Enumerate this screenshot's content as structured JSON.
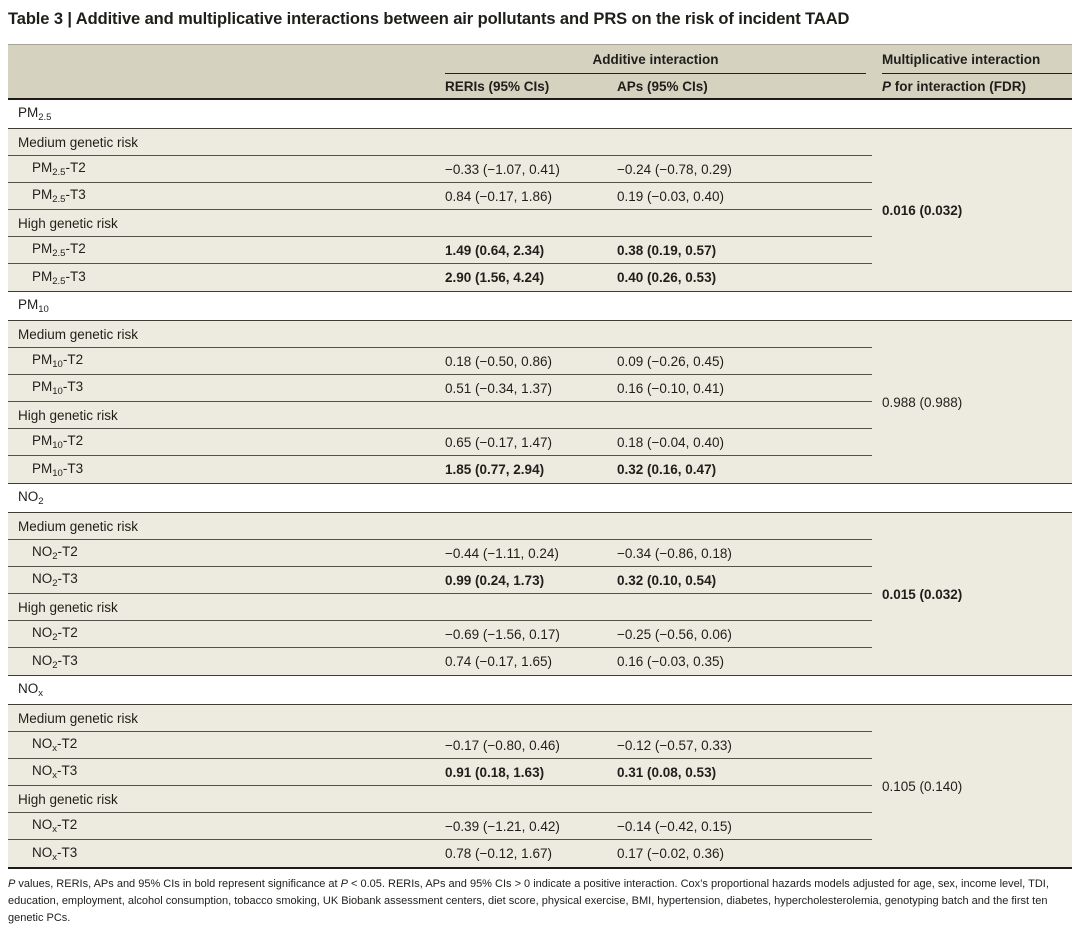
{
  "title": "Table 3 | Additive and multiplicative interactions between air pollutants and PRS on the risk of incident TAAD",
  "colors": {
    "header_band_bg": "#d5d2c0",
    "row_bg": "#edebe0",
    "rule_dark": "#1c1b17",
    "rule_mid": "#3e3c33",
    "rule_row": "#55524a",
    "text": "#1f1e1a"
  },
  "header": {
    "additive": "Additive interaction",
    "multiplicative": "Multiplicative interaction",
    "reri": "RERIs (95% CIs)",
    "ap": "APs (95% CIs)",
    "p_italic": "P",
    "p_rest": " for interaction (FDR)"
  },
  "sections": [
    {
      "pollutant": {
        "main": "PM",
        "sub": "2.5",
        "rest": ""
      },
      "p_value": "0.016 (0.032)",
      "p_bold": true,
      "groups": [
        {
          "label": "Medium genetic risk",
          "rows": [
            {
              "label": {
                "main": "PM",
                "sub": "2.5",
                "rest": "-T2"
              },
              "reri": "−0.33 (−1.07, 0.41)",
              "ap": "−0.24 (−0.78, 0.29)",
              "bold": false
            },
            {
              "label": {
                "main": "PM",
                "sub": "2.5",
                "rest": "-T3"
              },
              "reri": "0.84 (−0.17, 1.86)",
              "ap": "0.19 (−0.03, 0.40)",
              "bold": false
            }
          ]
        },
        {
          "label": "High genetic risk",
          "rows": [
            {
              "label": {
                "main": "PM",
                "sub": "2.5",
                "rest": "-T2"
              },
              "reri": "1.49 (0.64, 2.34)",
              "ap": "0.38 (0.19, 0.57)",
              "bold": true
            },
            {
              "label": {
                "main": "PM",
                "sub": "2.5",
                "rest": "-T3"
              },
              "reri": "2.90 (1.56, 4.24)",
              "ap": "0.40 (0.26, 0.53)",
              "bold": true
            }
          ]
        }
      ]
    },
    {
      "pollutant": {
        "main": "PM",
        "sub": "10",
        "rest": ""
      },
      "p_value": "0.988 (0.988)",
      "p_bold": false,
      "groups": [
        {
          "label": "Medium genetic risk",
          "rows": [
            {
              "label": {
                "main": "PM",
                "sub": "10",
                "rest": "-T2"
              },
              "reri": "0.18 (−0.50, 0.86)",
              "ap": "0.09 (−0.26, 0.45)",
              "bold": false
            },
            {
              "label": {
                "main": "PM",
                "sub": "10",
                "rest": "-T3"
              },
              "reri": "0.51 (−0.34, 1.37)",
              "ap": "0.16 (−0.10, 0.41)",
              "bold": false
            }
          ]
        },
        {
          "label": "High genetic risk",
          "rows": [
            {
              "label": {
                "main": "PM",
                "sub": "10",
                "rest": "-T2"
              },
              "reri": "0.65 (−0.17, 1.47)",
              "ap": "0.18 (−0.04, 0.40)",
              "bold": false
            },
            {
              "label": {
                "main": "PM",
                "sub": "10",
                "rest": "-T3"
              },
              "reri": "1.85 (0.77, 2.94)",
              "ap": "0.32 (0.16, 0.47)",
              "bold": true
            }
          ]
        }
      ]
    },
    {
      "pollutant": {
        "main": "NO",
        "sub": "2",
        "rest": ""
      },
      "p_value": "0.015 (0.032)",
      "p_bold": true,
      "groups": [
        {
          "label": "Medium genetic risk",
          "rows": [
            {
              "label": {
                "main": "NO",
                "sub": "2",
                "rest": "-T2"
              },
              "reri": "−0.44 (−1.11, 0.24)",
              "ap": "−0.34 (−0.86, 0.18)",
              "bold": false
            },
            {
              "label": {
                "main": "NO",
                "sub": "2",
                "rest": "-T3"
              },
              "reri": "0.99 (0.24, 1.73)",
              "ap": "0.32 (0.10, 0.54)",
              "bold": true
            }
          ]
        },
        {
          "label": "High genetic risk",
          "rows": [
            {
              "label": {
                "main": "NO",
                "sub": "2",
                "rest": "-T2"
              },
              "reri": "−0.69 (−1.56, 0.17)",
              "ap": "−0.25 (−0.56, 0.06)",
              "bold": false
            },
            {
              "label": {
                "main": "NO",
                "sub": "2",
                "rest": "-T3"
              },
              "reri": "0.74 (−0.17, 1.65)",
              "ap": "0.16 (−0.03, 0.35)",
              "bold": false
            }
          ]
        }
      ]
    },
    {
      "pollutant": {
        "main": "NO",
        "sub": "x",
        "rest": ""
      },
      "p_value": "0.105 (0.140)",
      "p_bold": false,
      "groups": [
        {
          "label": "Medium genetic risk",
          "rows": [
            {
              "label": {
                "main": "NO",
                "sub": "x",
                "rest": "-T2"
              },
              "reri": "−0.17 (−0.80, 0.46)",
              "ap": "−0.12 (−0.57, 0.33)",
              "bold": false
            },
            {
              "label": {
                "main": "NO",
                "sub": "x",
                "rest": "-T3"
              },
              "reri": "0.91 (0.18, 1.63)",
              "ap": "0.31 (0.08, 0.53)",
              "bold": true
            }
          ]
        },
        {
          "label": "High genetic risk",
          "rows": [
            {
              "label": {
                "main": "NO",
                "sub": "x",
                "rest": "-T2"
              },
              "reri": "−0.39 (−1.21, 0.42)",
              "ap": "−0.14 (−0.42, 0.15)",
              "bold": false
            },
            {
              "label": {
                "main": "NO",
                "sub": "x",
                "rest": "-T3"
              },
              "reri": "0.78 (−0.12, 1.67)",
              "ap": "0.17 (−0.02, 0.36)",
              "bold": false
            }
          ]
        }
      ]
    }
  ],
  "footnote": {
    "p1": "P",
    "t1": " values, RERIs, APs and 95% CIs in bold represent significance at ",
    "p2": "P",
    "t2": " < 0.05. RERIs, APs and 95% CIs > 0 indicate a positive interaction. Cox’s proportional hazards models adjusted for age, sex, income level, TDI, education, employment, alcohol consumption, tobacco smoking, UK Biobank assessment centers, diet score, physical exercise, BMI, hypertension, diabetes, hypercholesterolemia, genotyping batch and the first ten genetic PCs."
  }
}
